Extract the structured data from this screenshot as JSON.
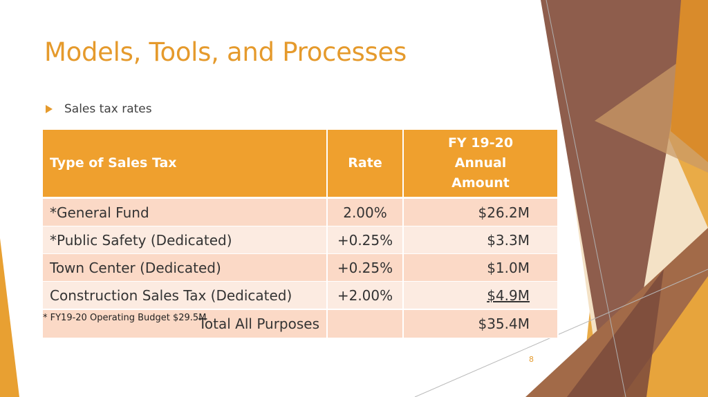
{
  "slide": {
    "title": "Models, Tools, and Processes",
    "bullet": "Sales tax rates",
    "footnote": "* FY19-20 Operating Budget $29.5M",
    "page_number": "8",
    "colors": {
      "accent": "#e59a2c",
      "header_bg": "#efa02e",
      "row_dark": "#fbd9c6",
      "row_light": "#fcebe1",
      "deco_brown": "#8b5a4a"
    }
  },
  "table": {
    "headers": {
      "type": "Type of Sales Tax",
      "rate": "Rate",
      "amount": [
        "FY 19-20",
        "Annual",
        "Amount"
      ]
    },
    "rows": [
      {
        "type": "*General Fund",
        "rate": "2.00%",
        "amount": "$26.2M"
      },
      {
        "type": "*Public Safety (Dedicated)",
        "rate": "+0.25%",
        "amount": "$3.3M"
      },
      {
        "type": "Town Center (Dedicated)",
        "rate": "+0.25%",
        "amount": "$1.0M"
      },
      {
        "type": "Construction Sales Tax (Dedicated)",
        "rate": "+2.00%",
        "amount": "$4.9M"
      }
    ],
    "total": {
      "label": "Total All Purposes",
      "rate": "",
      "amount": "$35.4M"
    }
  }
}
